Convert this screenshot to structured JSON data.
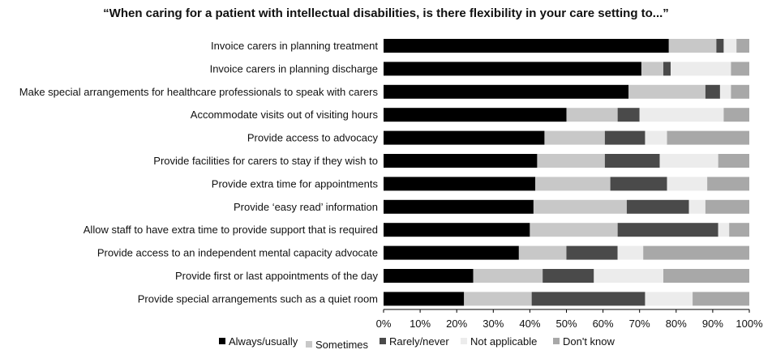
{
  "chart_data": {
    "type": "bar",
    "orientation": "horizontal",
    "stacked": true,
    "percent": true,
    "title": "“When caring for a patient with intellectual disabilities, is there flexibility in your care setting to...”",
    "categories": [
      "Invoice carers in planning treatment",
      "Invoice carers in planning discharge",
      "Make special arrangements for healthcare professionals to speak with carers",
      "Accommodate visits out of visiting hours",
      "Provide access to advocacy",
      "Provide facilities for carers to stay if they wish to",
      "Provide extra time for appointments",
      "Provide ‘easy read’ information",
      "Allow staff to have extra time to provide support that is required",
      "Provide access to an independent mental capacity advocate",
      "Provide first or last appointments of the day",
      "Provide special arrangements such as a quiet room"
    ],
    "series": [
      {
        "name": "Always/usually",
        "color": "#000000",
        "values": [
          78,
          70.5,
          67,
          50,
          44,
          42,
          41.5,
          41,
          40,
          37,
          24.5,
          22
        ]
      },
      {
        "name": "Sometimes",
        "color": "#c8c8c8",
        "values": [
          13,
          6,
          21,
          14,
          16.5,
          18.5,
          20.5,
          25.5,
          24,
          13,
          19,
          18.5
        ]
      },
      {
        "name": "Rarely/never",
        "color": "#4a4a4a",
        "values": [
          2,
          2,
          4,
          6,
          11,
          15,
          15.5,
          17,
          27.5,
          14,
          14,
          31
        ]
      },
      {
        "name": "Not applicable",
        "color": "#ececec",
        "values": [
          3.5,
          16.5,
          3,
          23,
          6,
          16,
          11,
          4.5,
          3,
          7,
          19,
          13
        ]
      },
      {
        "name": "Don't know",
        "color": "#a8a8a8",
        "values": [
          3.5,
          5,
          5,
          7,
          22.5,
          8.5,
          11.5,
          12,
          5.5,
          29,
          23.5,
          15.5
        ]
      }
    ],
    "xaxis": {
      "ticks": [
        "0%",
        "10%",
        "20%",
        "30%",
        "40%",
        "50%",
        "60%",
        "70%",
        "80%",
        "90%",
        "100%"
      ],
      "range": [
        0,
        100
      ]
    },
    "legend_position": "bottom",
    "grid": false
  }
}
